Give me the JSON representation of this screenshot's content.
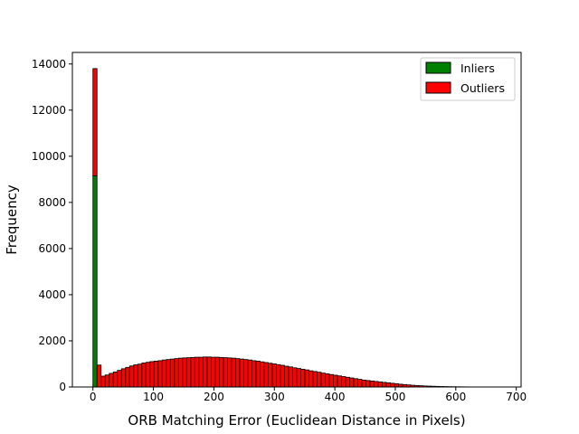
{
  "chart_data": {
    "type": "bar",
    "subtype": "stacked-histogram",
    "title": "",
    "xlabel": "ORB Matching Error (Euclidean Distance in Pixels)",
    "ylabel": "Frequency",
    "xlim": [
      -34,
      708
    ],
    "ylim": [
      0,
      14500
    ],
    "xticks": [
      0,
      100,
      200,
      300,
      400,
      500,
      600,
      700
    ],
    "yticks": [
      0,
      2000,
      4000,
      6000,
      8000,
      10000,
      12000,
      14000
    ],
    "grid": false,
    "legend_position": "top-right",
    "bin_width": 6.74,
    "bin_start": 0,
    "series": [
      {
        "name": "Inliers",
        "color": "#008000",
        "values": [
          9150
        ]
      },
      {
        "name": "Outliers",
        "color": "#ff0000",
        "values": [
          4650,
          950,
          470,
          520,
          590,
          650,
          720,
          790,
          850,
          910,
          960,
          990,
          1040,
          1070,
          1100,
          1120,
          1140,
          1170,
          1190,
          1210,
          1230,
          1250,
          1260,
          1270,
          1280,
          1290,
          1290,
          1300,
          1300,
          1290,
          1290,
          1280,
          1270,
          1260,
          1250,
          1230,
          1210,
          1190,
          1170,
          1140,
          1120,
          1090,
          1060,
          1030,
          1000,
          970,
          940,
          900,
          870,
          830,
          800,
          770,
          740,
          700,
          670,
          640,
          600,
          570,
          540,
          510,
          480,
          450,
          420,
          390,
          360,
          330,
          300,
          280,
          260,
          240,
          220,
          200,
          180,
          160,
          140,
          120,
          105,
          90,
          75,
          65,
          55,
          45,
          38,
          32,
          26,
          21,
          17,
          14,
          11,
          9,
          7,
          5,
          4,
          3,
          2,
          2,
          1,
          1,
          1,
          1
        ]
      }
    ]
  }
}
